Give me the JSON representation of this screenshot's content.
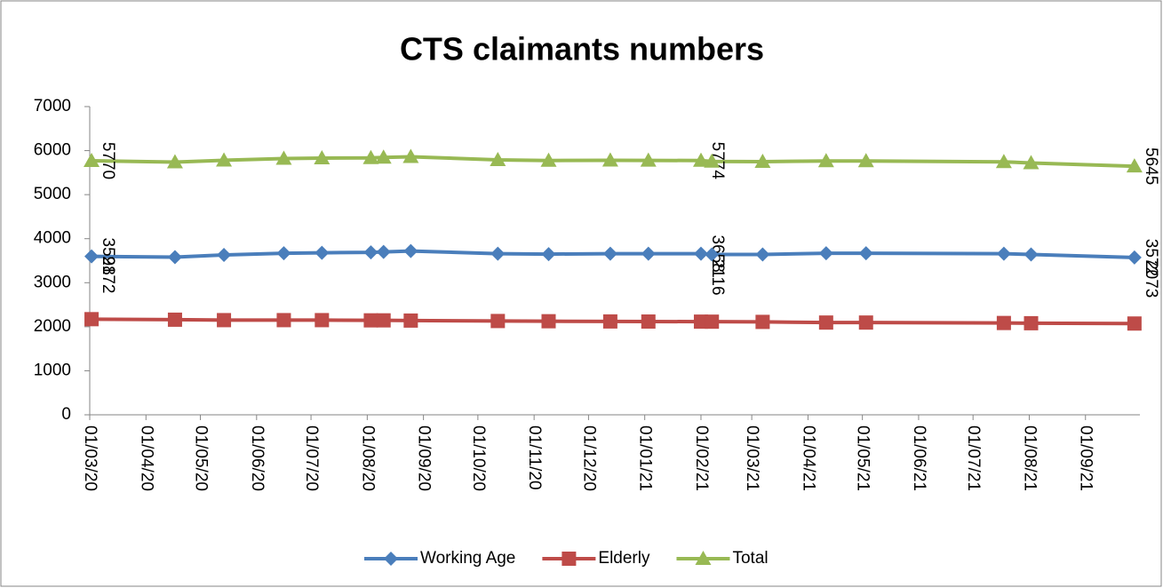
{
  "chart_data": {
    "type": "line",
    "title": "CTS claimants numbers",
    "x": [
      "02/03/20",
      "17/04/20",
      "14/05/20",
      "16/06/20",
      "07/07/20",
      "03/08/20",
      "10/08/20",
      "25/08/20",
      "12/10/20",
      "09/11/20",
      "13/12/20",
      "03/01/21",
      "01/02/21",
      "07/02/21",
      "07/03/21",
      "11/04/21",
      "03/05/21",
      "18/07/21",
      "02/08/21",
      "28/09/21"
    ],
    "series": [
      {
        "name": "Working Age",
        "color": "#4a7ebb",
        "marker": "diamond",
        "values": [
          3598,
          3580,
          3630,
          3670,
          3680,
          3690,
          3700,
          3720,
          3660,
          3650,
          3660,
          3660,
          3658,
          3640,
          3640,
          3670,
          3670,
          3660,
          3640,
          3572
        ],
        "value_labels": [
          "3598",
          null,
          null,
          null,
          null,
          null,
          null,
          null,
          null,
          null,
          null,
          null,
          "3658",
          null,
          null,
          null,
          null,
          null,
          null,
          "3572"
        ]
      },
      {
        "name": "Elderly",
        "color": "#be4b48",
        "marker": "square",
        "values": [
          2172,
          2160,
          2150,
          2150,
          2150,
          2145,
          2145,
          2140,
          2130,
          2125,
          2120,
          2118,
          2116,
          2115,
          2110,
          2095,
          2095,
          2085,
          2080,
          2073
        ],
        "value_labels": [
          "2172",
          null,
          null,
          null,
          null,
          null,
          null,
          null,
          null,
          null,
          null,
          null,
          "2116",
          null,
          null,
          null,
          null,
          null,
          null,
          "2073"
        ]
      },
      {
        "name": "Total",
        "color": "#98b954",
        "marker": "triangle",
        "values": [
          5770,
          5740,
          5780,
          5820,
          5830,
          5835,
          5845,
          5860,
          5790,
          5775,
          5780,
          5778,
          5774,
          5755,
          5750,
          5765,
          5765,
          5745,
          5720,
          5645
        ],
        "value_labels": [
          "5770",
          null,
          null,
          null,
          null,
          null,
          null,
          null,
          null,
          null,
          null,
          null,
          "5774",
          null,
          null,
          null,
          null,
          null,
          null,
          "5645"
        ]
      }
    ],
    "xlim": [
      "01/03/20",
      "01/10/21"
    ],
    "xticks": [
      "01/03/20",
      "01/04/20",
      "01/05/20",
      "01/06/20",
      "01/07/20",
      "01/08/20",
      "01/09/20",
      "01/10/20",
      "01/11/20",
      "01/12/20",
      "01/01/21",
      "01/02/21",
      "01/03/21",
      "01/04/21",
      "01/05/21",
      "01/06/21",
      "01/07/21",
      "01/08/21",
      "01/09/21"
    ],
    "ylim": [
      0,
      7000
    ],
    "yticks": [
      0,
      1000,
      2000,
      3000,
      4000,
      5000,
      6000,
      7000
    ],
    "grid": false,
    "legend": "bottom"
  }
}
